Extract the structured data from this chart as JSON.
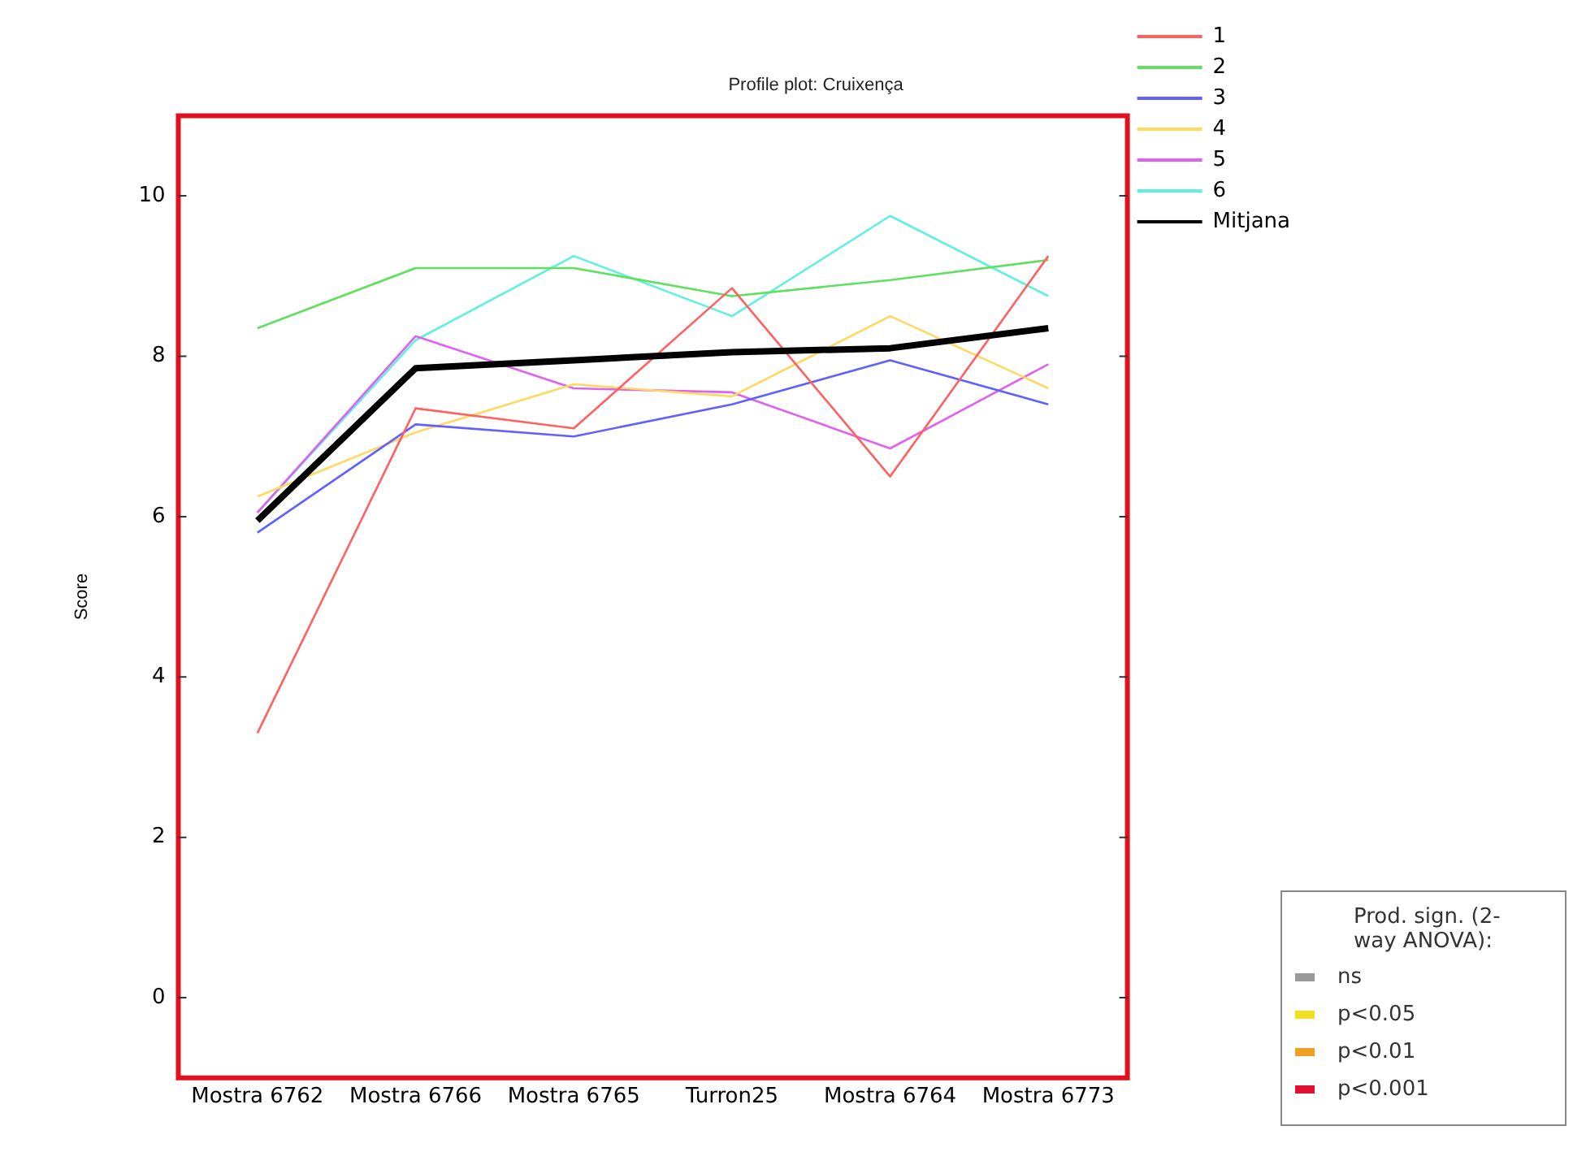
{
  "chart_data": {
    "type": "line",
    "title": "Profile plot: Cruixença",
    "ylabel": "Score",
    "categories": [
      "Mostra 6762",
      "Mostra 6766",
      "Mostra 6765",
      "Turron25",
      "Mostra 6764",
      "Mostra 6773"
    ],
    "series": [
      {
        "name": "1",
        "color": "#ff6060",
        "values": [
          3.3,
          7.35,
          7.1,
          8.85,
          6.5,
          9.25
        ]
      },
      {
        "name": "2",
        "color": "#60e060",
        "values": [
          8.35,
          9.1,
          9.1,
          8.75,
          8.95,
          9.2
        ]
      },
      {
        "name": "3",
        "color": "#6060ff",
        "values": [
          5.8,
          7.15,
          7.0,
          7.4,
          7.95,
          7.4
        ]
      },
      {
        "name": "4",
        "color": "#ffd860",
        "values": [
          6.25,
          7.05,
          7.65,
          7.5,
          8.5,
          7.6
        ]
      },
      {
        "name": "5",
        "color": "#e060f0",
        "values": [
          6.05,
          8.25,
          7.6,
          7.55,
          6.85,
          7.9
        ]
      },
      {
        "name": "6",
        "color": "#60f0e0",
        "values": [
          6.05,
          8.2,
          9.25,
          8.5,
          9.75,
          8.75
        ]
      },
      {
        "name": "Mitjana",
        "color": "#000000",
        "values": [
          5.95,
          7.85,
          7.95,
          8.05,
          8.1,
          8.35
        ]
      }
    ],
    "ylim": [
      -1,
      11
    ],
    "yticks": [
      0,
      2,
      4,
      6,
      8,
      10
    ],
    "grid": false,
    "legend": "top right",
    "marker": "none",
    "line_style": "solid",
    "annotations": [
      "Prod. sign. (2-way ANOVA):",
      "ns",
      "p<0.05",
      "p<0.01",
      "p<0.001"
    ]
  }
}
